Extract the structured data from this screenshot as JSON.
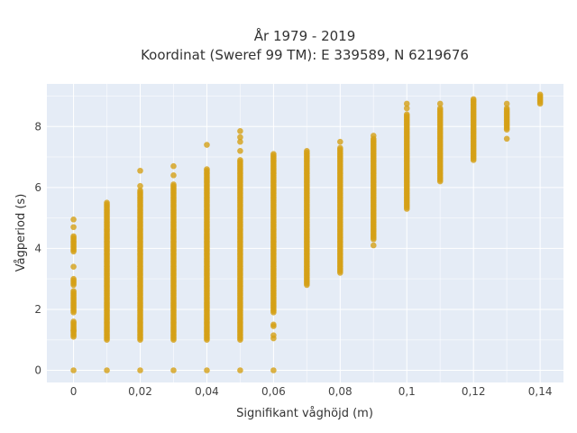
{
  "chart_data": {
    "type": "scatter",
    "title_lines": [
      "År 1979 - 2019",
      "Koordinat (Sweref 99 TM): E 339589, N 6219676"
    ],
    "xlabel": "Signifikant våghöjd (m)",
    "ylabel": "Vågperiod (s)",
    "xlim": [
      -0.008,
      0.147
    ],
    "ylim": [
      -0.4,
      9.4
    ],
    "x_ticks": [
      0,
      0.02,
      0.04,
      0.06,
      0.08,
      0.1,
      0.12,
      0.14
    ],
    "x_tick_labels": [
      "0",
      "0,02",
      "0,04",
      "0,06",
      "0,08",
      "0,1",
      "0,12",
      "0,14"
    ],
    "y_ticks": [
      0,
      2,
      4,
      6,
      8
    ],
    "y_tick_labels": [
      "0",
      "2",
      "4",
      "6",
      "8"
    ],
    "grid": true,
    "marker_color": "#D4A017",
    "plot_background": "#E5ECF6",
    "columns": [
      {
        "x": 0.0,
        "ranges": [
          [
            1.1,
            1.6
          ],
          [
            1.9,
            2.6
          ],
          [
            2.8,
            3.0
          ],
          [
            3.9,
            4.4
          ]
        ],
        "points": [
          0,
          3.4,
          4.7,
          4.95,
          1.3
        ]
      },
      {
        "x": 0.01,
        "ranges": [
          [
            1.0,
            5.5
          ]
        ],
        "points": [
          0
        ]
      },
      {
        "x": 0.02,
        "ranges": [
          [
            1.0,
            5.9
          ]
        ],
        "points": [
          0,
          6.05,
          6.55
        ]
      },
      {
        "x": 0.03,
        "ranges": [
          [
            1.0,
            6.1
          ]
        ],
        "points": [
          0,
          6.4,
          6.7
        ]
      },
      {
        "x": 0.04,
        "ranges": [
          [
            1.0,
            6.6
          ]
        ],
        "points": [
          0,
          7.4
        ]
      },
      {
        "x": 0.05,
        "ranges": [
          [
            1.0,
            6.9
          ]
        ],
        "points": [
          0,
          7.2,
          7.5,
          7.65,
          7.85
        ]
      },
      {
        "x": 0.06,
        "ranges": [
          [
            1.9,
            7.1
          ]
        ],
        "points": [
          0,
          1.05,
          1.15,
          1.45,
          1.5
        ]
      },
      {
        "x": 0.07,
        "ranges": [
          [
            2.8,
            7.2
          ]
        ],
        "points": []
      },
      {
        "x": 0.08,
        "ranges": [
          [
            3.2,
            7.3
          ]
        ],
        "points": [
          7.5
        ]
      },
      {
        "x": 0.09,
        "ranges": [
          [
            4.3,
            7.6
          ]
        ],
        "points": [
          4.1,
          7.7
        ]
      },
      {
        "x": 0.1,
        "ranges": [
          [
            5.3,
            8.4
          ]
        ],
        "points": [
          8.6,
          8.75
        ]
      },
      {
        "x": 0.11,
        "ranges": [
          [
            6.2,
            8.6
          ]
        ],
        "points": [
          8.75
        ]
      },
      {
        "x": 0.12,
        "ranges": [
          [
            6.9,
            8.9
          ]
        ],
        "points": []
      },
      {
        "x": 0.13,
        "ranges": [
          [
            7.9,
            8.6
          ]
        ],
        "points": [
          7.6,
          8.75
        ]
      },
      {
        "x": 0.14,
        "ranges": [
          [
            8.75,
            9.05
          ]
        ],
        "points": []
      }
    ]
  }
}
